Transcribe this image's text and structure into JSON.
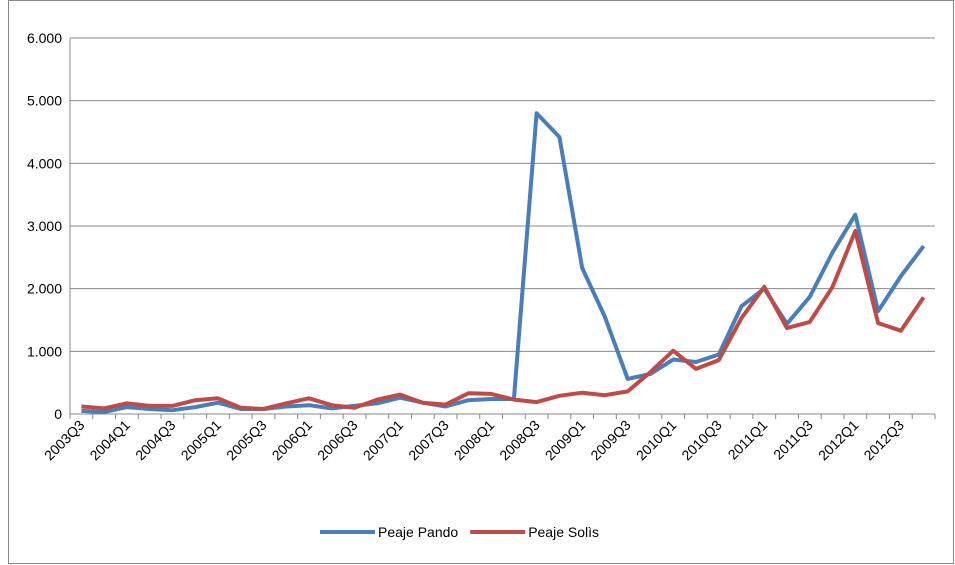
{
  "chart_data": {
    "type": "line",
    "categories": [
      "2003Q3",
      null,
      "2004Q1",
      null,
      "2004Q3",
      null,
      "2005Q1",
      null,
      "2005Q3",
      null,
      "2006Q1",
      null,
      "2006Q3",
      null,
      "2007Q1",
      null,
      "2007Q3",
      null,
      "2008Q1",
      null,
      "2008Q3",
      null,
      "2009Q1",
      null,
      "2009Q3",
      null,
      "2010Q1",
      null,
      "2010Q3",
      null,
      "2011Q1",
      null,
      "2011Q3",
      null,
      "2012Q1",
      null,
      "2012Q3",
      null
    ],
    "series": [
      {
        "name": "Peaje Pando",
        "color": "#4a7ebb",
        "values": [
          50,
          30,
          110,
          80,
          60,
          110,
          180,
          80,
          80,
          120,
          140,
          90,
          130,
          170,
          260,
          180,
          120,
          220,
          240,
          240,
          4800,
          4420,
          2330,
          1550,
          560,
          640,
          870,
          830,
          950,
          1720,
          2000,
          1440,
          1870,
          2580,
          3180,
          1640,
          2200,
          2680
        ]
      },
      {
        "name": "Peaje Solìs",
        "color": "#be4b48",
        "values": [
          120,
          90,
          170,
          130,
          130,
          220,
          250,
          100,
          80,
          170,
          250,
          140,
          100,
          230,
          310,
          180,
          150,
          330,
          320,
          230,
          190,
          290,
          340,
          300,
          360,
          670,
          1010,
          720,
          860,
          1530,
          2030,
          1370,
          1470,
          2030,
          2920,
          1450,
          1330,
          1860
        ]
      }
    ],
    "ylim": [
      0,
      6000
    ],
    "yticks": [
      0,
      {
        "value": 1000,
        "label": "1.000"
      },
      {
        "value": 2000,
        "label": "2.000"
      },
      {
        "value": 3000,
        "label": "3.000"
      },
      {
        "value": 4000,
        "label": "4.000"
      },
      {
        "value": 5000,
        "label": "5.000"
      },
      {
        "value": 6000,
        "label": "6.000"
      }
    ],
    "grid": true,
    "legend": "bottom"
  }
}
